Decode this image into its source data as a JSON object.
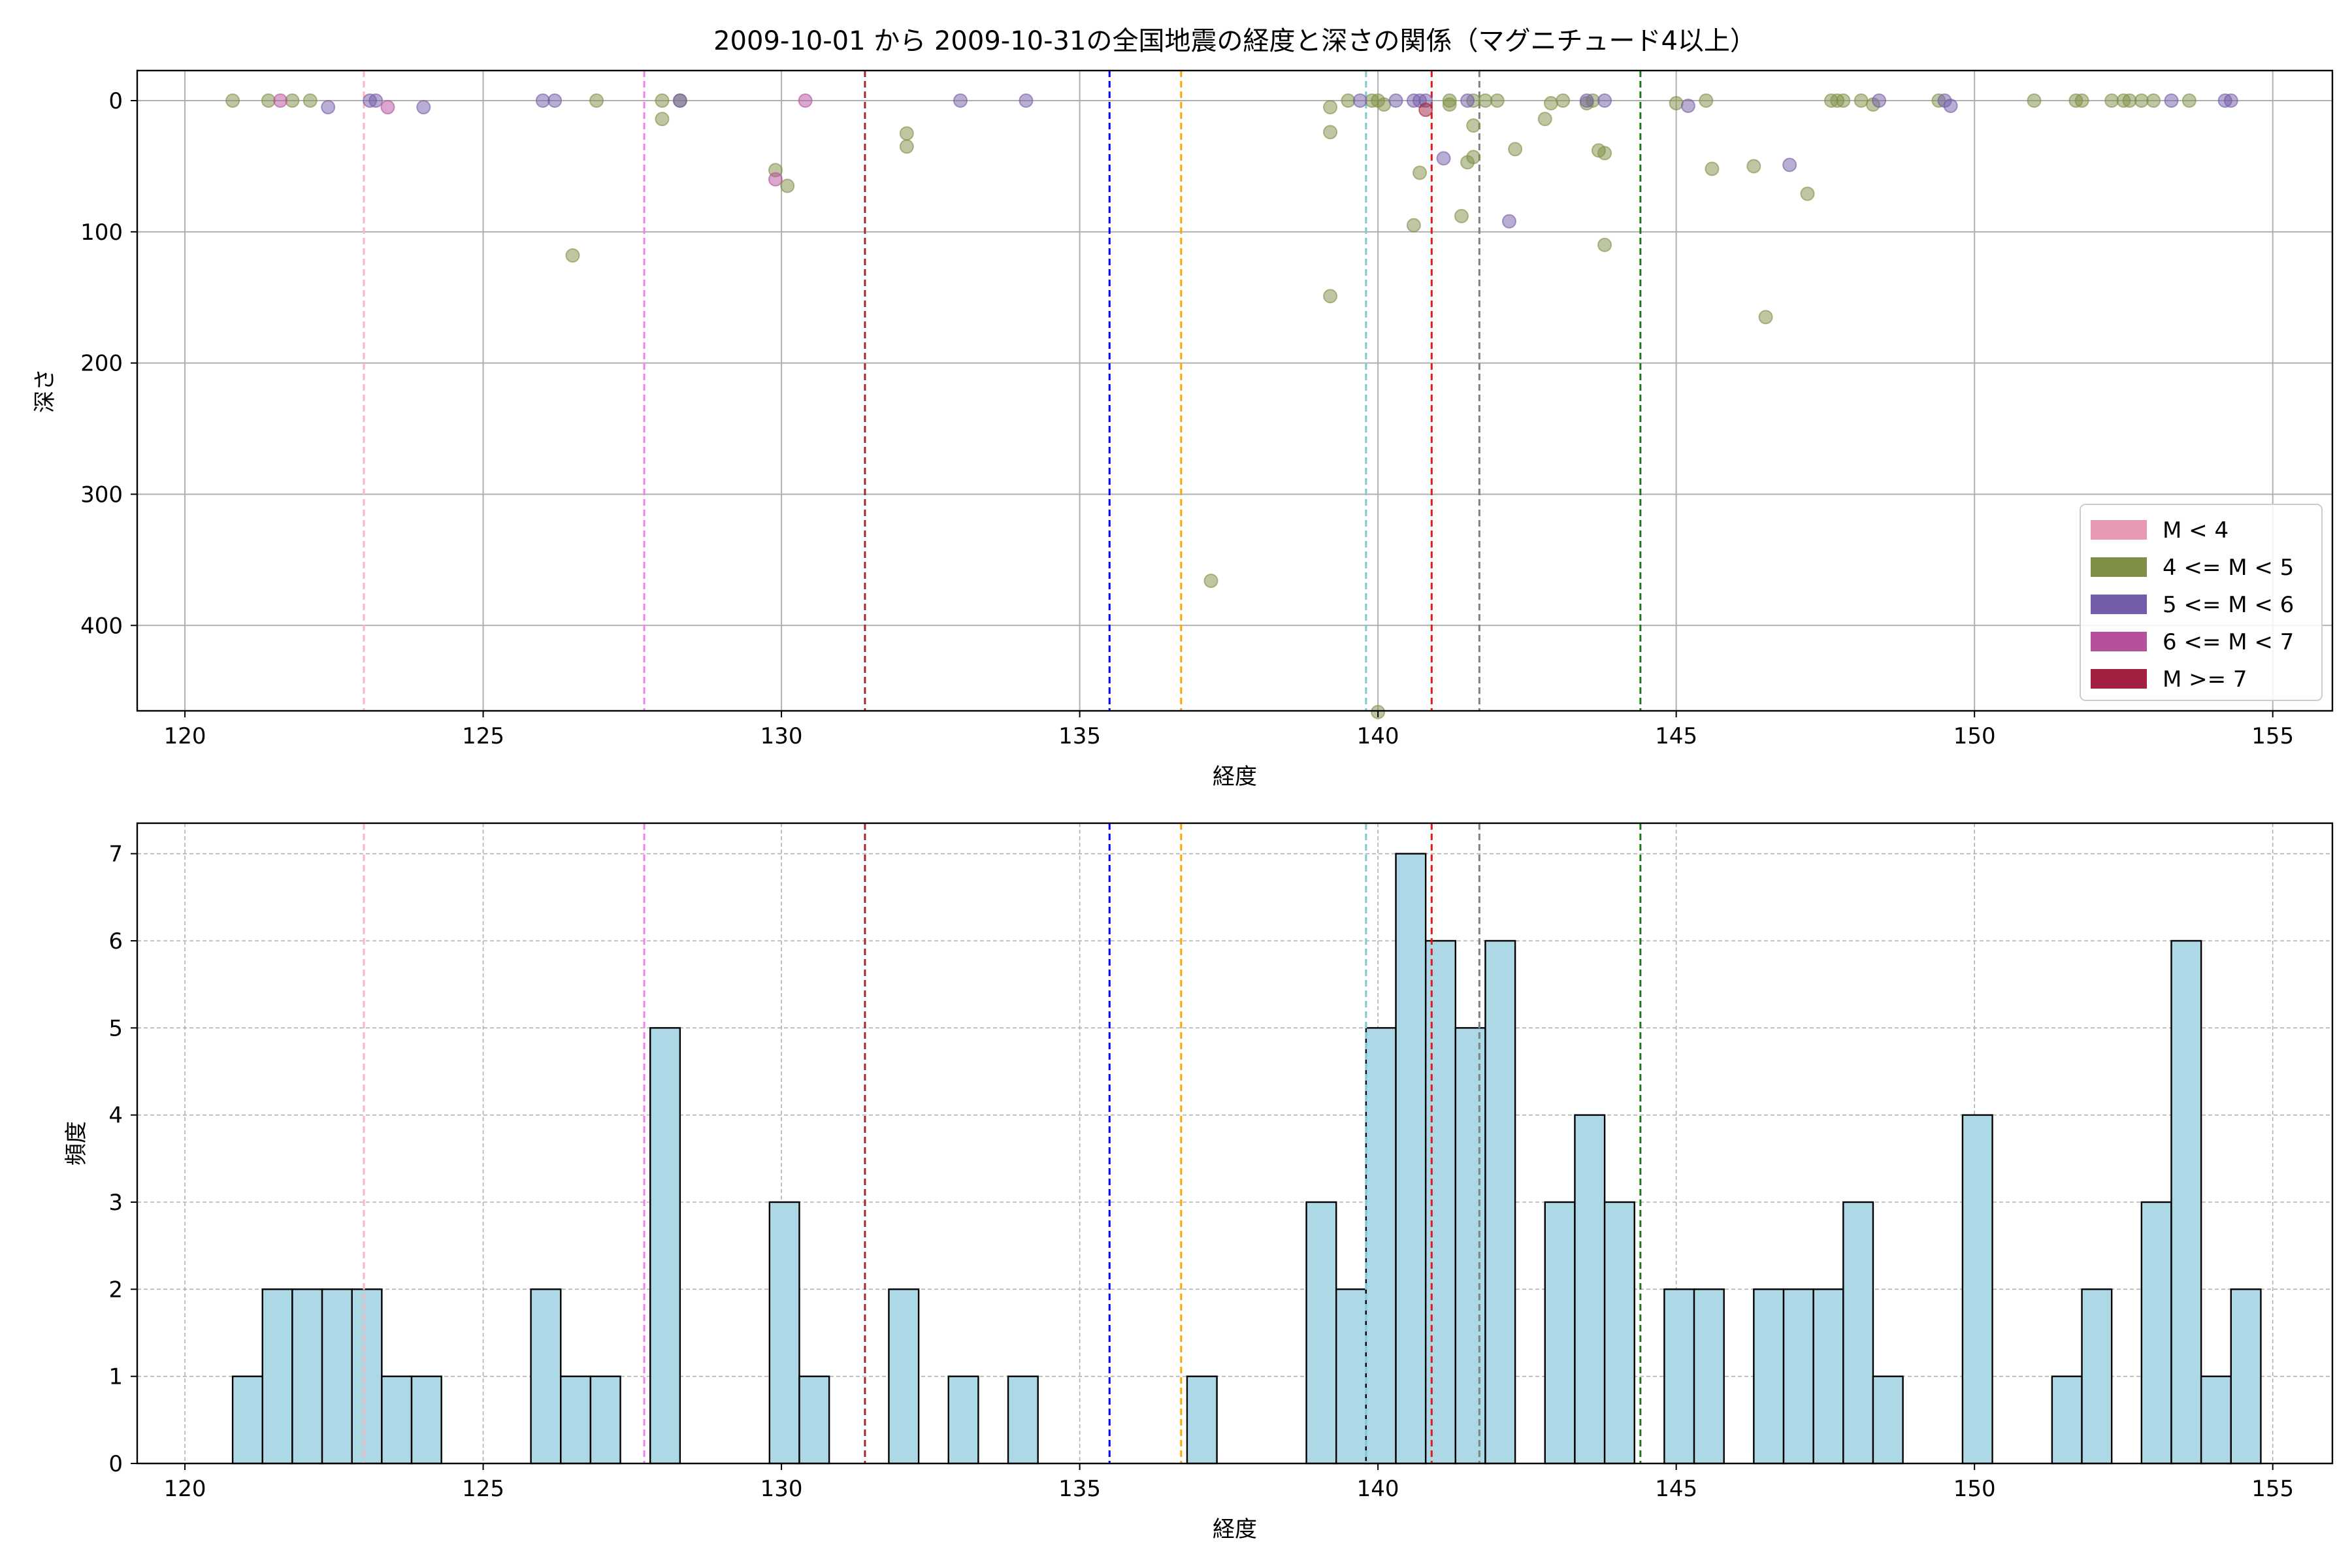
{
  "title": "2009-10-01 から 2009-10-31の全国地震の経度と深さの関係（マグニチュード4以上）",
  "chart_data": [
    {
      "type": "scatter",
      "xlabel": "経度",
      "ylabel": "深さ",
      "xlim": [
        119.2,
        156
      ],
      "ylim": [
        0,
        488
      ],
      "y_inverted": true,
      "grid": true,
      "x_ticks": [
        120,
        125,
        130,
        135,
        140,
        145,
        150,
        155
      ],
      "y_ticks": [
        0,
        100,
        200,
        300,
        400
      ],
      "legend_position": "lower-right",
      "legend": [
        {
          "label": "M < 4",
          "color": "#e899b5"
        },
        {
          "label": "4 <= M < 5",
          "color": "#7f8f45"
        },
        {
          "label": "5 <= M < 6",
          "color": "#735ca9"
        },
        {
          "label": "6 <= M < 7",
          "color": "#b5509d"
        },
        {
          "label": "M >= 7",
          "color": "#a11f3f"
        }
      ],
      "vlines": [
        {
          "x": 123.0,
          "color": "#ffb6c1"
        },
        {
          "x": 127.7,
          "color": "#ee82ee"
        },
        {
          "x": 131.4,
          "color": "#a52a2a"
        },
        {
          "x": 135.5,
          "color": "#0000ff"
        },
        {
          "x": 136.7,
          "color": "#ffa500"
        },
        {
          "x": 139.8,
          "color": "#7fc8d8"
        },
        {
          "x": 140.9,
          "color": "#e41a1c"
        },
        {
          "x": 141.7,
          "color": "#808080"
        },
        {
          "x": 144.4,
          "color": "#1a7a1a"
        }
      ],
      "series": [
        {
          "magnitude_class": "4 <= M < 5",
          "color": "#7f8f45",
          "points": [
            [
              120.8,
              0
            ],
            [
              121.4,
              0
            ],
            [
              121.8,
              0
            ],
            [
              122.1,
              0
            ],
            [
              126.5,
              118
            ],
            [
              126.9,
              0
            ],
            [
              128.0,
              0
            ],
            [
              128.0,
              14
            ],
            [
              128.3,
              0
            ],
            [
              129.9,
              53
            ],
            [
              130.1,
              65
            ],
            [
              132.1,
              25
            ],
            [
              132.1,
              35
            ],
            [
              137.2,
              366
            ],
            [
              139.2,
              5
            ],
            [
              139.2,
              24
            ],
            [
              139.2,
              149
            ],
            [
              139.5,
              0
            ],
            [
              139.9,
              0
            ],
            [
              140.0,
              0
            ],
            [
              140.0,
              466
            ],
            [
              140.1,
              3
            ],
            [
              140.6,
              95
            ],
            [
              140.7,
              55
            ],
            [
              141.2,
              0
            ],
            [
              141.2,
              3
            ],
            [
              141.4,
              88
            ],
            [
              141.5,
              47
            ],
            [
              141.6,
              0
            ],
            [
              141.6,
              19
            ],
            [
              141.6,
              43
            ],
            [
              141.8,
              0
            ],
            [
              142.0,
              0
            ],
            [
              142.3,
              37
            ],
            [
              142.8,
              14
            ],
            [
              142.9,
              2
            ],
            [
              143.1,
              0
            ],
            [
              143.5,
              2
            ],
            [
              143.6,
              0
            ],
            [
              143.7,
              38
            ],
            [
              143.8,
              40
            ],
            [
              143.8,
              110
            ],
            [
              145.0,
              2
            ],
            [
              145.5,
              0
            ],
            [
              145.6,
              52
            ],
            [
              146.3,
              50
            ],
            [
              146.5,
              165
            ],
            [
              147.2,
              71
            ],
            [
              147.6,
              0
            ],
            [
              147.7,
              0
            ],
            [
              147.8,
              0
            ],
            [
              148.1,
              0
            ],
            [
              148.3,
              3
            ],
            [
              149.4,
              0
            ],
            [
              151.0,
              0
            ],
            [
              151.7,
              0
            ],
            [
              151.8,
              0
            ],
            [
              152.3,
              0
            ],
            [
              152.5,
              0
            ],
            [
              152.6,
              0
            ],
            [
              152.8,
              0
            ],
            [
              153.0,
              0
            ],
            [
              153.6,
              0
            ]
          ]
        },
        {
          "magnitude_class": "5 <= M < 6",
          "color": "#735ca9",
          "points": [
            [
              122.4,
              5
            ],
            [
              123.1,
              0
            ],
            [
              123.2,
              0
            ],
            [
              124.0,
              5
            ],
            [
              126.0,
              0
            ],
            [
              126.2,
              0
            ],
            [
              128.3,
              0
            ],
            [
              133.0,
              0
            ],
            [
              134.1,
              0
            ],
            [
              139.7,
              0
            ],
            [
              140.3,
              0
            ],
            [
              140.6,
              0
            ],
            [
              140.7,
              0
            ],
            [
              140.8,
              0
            ],
            [
              141.1,
              44
            ],
            [
              141.5,
              0
            ],
            [
              142.2,
              92
            ],
            [
              143.5,
              0
            ],
            [
              143.8,
              0
            ],
            [
              145.2,
              4
            ],
            [
              146.9,
              49
            ],
            [
              148.4,
              0
            ],
            [
              149.5,
              0
            ],
            [
              149.6,
              4
            ],
            [
              153.3,
              0
            ],
            [
              154.2,
              0
            ],
            [
              154.3,
              0
            ]
          ]
        },
        {
          "magnitude_class": "6 <= M < 7",
          "color": "#b5509d",
          "points": [
            [
              121.6,
              0
            ],
            [
              123.4,
              5
            ],
            [
              129.9,
              60
            ],
            [
              130.4,
              0
            ]
          ]
        },
        {
          "magnitude_class": "M >= 7",
          "color": "#a11f3f",
          "points": [
            [
              140.8,
              7
            ]
          ]
        }
      ]
    },
    {
      "type": "bar",
      "xlabel": "経度",
      "ylabel": "頻度",
      "xlim": [
        119.2,
        156
      ],
      "ylim": [
        0,
        7.35
      ],
      "grid": true,
      "grid_style": "dashed",
      "x_ticks": [
        120,
        125,
        130,
        135,
        140,
        145,
        150,
        155
      ],
      "y_ticks": [
        0,
        1,
        2,
        3,
        4,
        5,
        6,
        7
      ],
      "bar_color": "#add8e6",
      "bin_start": 120.8,
      "bin_width": 0.5,
      "counts": [
        1,
        2,
        2,
        2,
        2,
        1,
        1,
        0,
        0,
        0,
        2,
        1,
        1,
        0,
        5,
        0,
        0,
        0,
        3,
        1,
        0,
        0,
        2,
        0,
        1,
        0,
        1,
        0,
        0,
        0,
        0,
        0,
        1,
        0,
        0,
        0,
        3,
        2,
        5,
        7,
        6,
        5,
        6,
        0,
        3,
        4,
        3,
        0,
        2,
        2,
        0,
        2,
        2,
        2,
        3,
        1,
        0,
        0,
        4,
        0,
        0,
        1,
        2,
        0,
        3,
        6,
        1,
        2
      ],
      "vlines": [
        {
          "x": 123.0,
          "color": "#ffb6c1"
        },
        {
          "x": 127.7,
          "color": "#ee82ee"
        },
        {
          "x": 131.4,
          "color": "#a52a2a"
        },
        {
          "x": 135.5,
          "color": "#0000ff"
        },
        {
          "x": 136.7,
          "color": "#ffa500"
        },
        {
          "x": 139.8,
          "color": "#7fc8d8"
        },
        {
          "x": 140.9,
          "color": "#e41a1c"
        },
        {
          "x": 141.7,
          "color": "#808080"
        },
        {
          "x": 144.4,
          "color": "#1a7a1a"
        }
      ]
    }
  ]
}
